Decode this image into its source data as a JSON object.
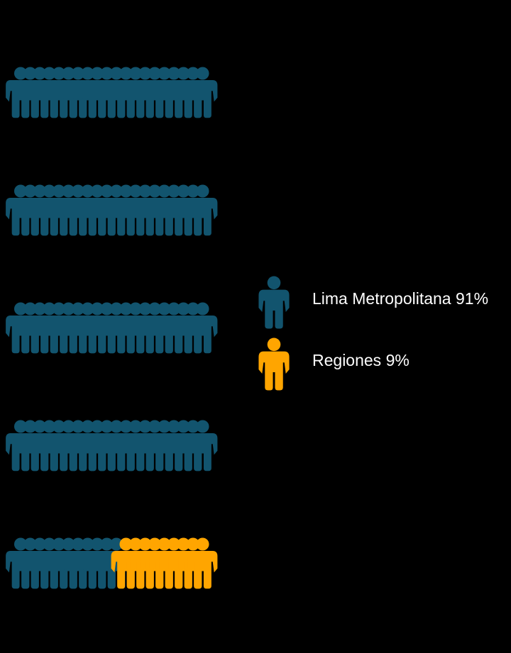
{
  "chart_data": {
    "type": "pictogram",
    "total_icons": 100,
    "icons_per_row": 20,
    "series": [
      {
        "name": "Lima Metropolitana",
        "value": 91,
        "color": "#12546e"
      },
      {
        "name": "Regiones",
        "value": 9,
        "color": "#ffa500"
      }
    ],
    "legend": {
      "position": "right",
      "items": [
        {
          "label": "Lima Metropolitana 91%",
          "color": "#12546e",
          "icon": "person-icon"
        },
        {
          "label": "Regiones 9%",
          "color": "#ffa500",
          "icon": "person-icon"
        }
      ]
    }
  }
}
